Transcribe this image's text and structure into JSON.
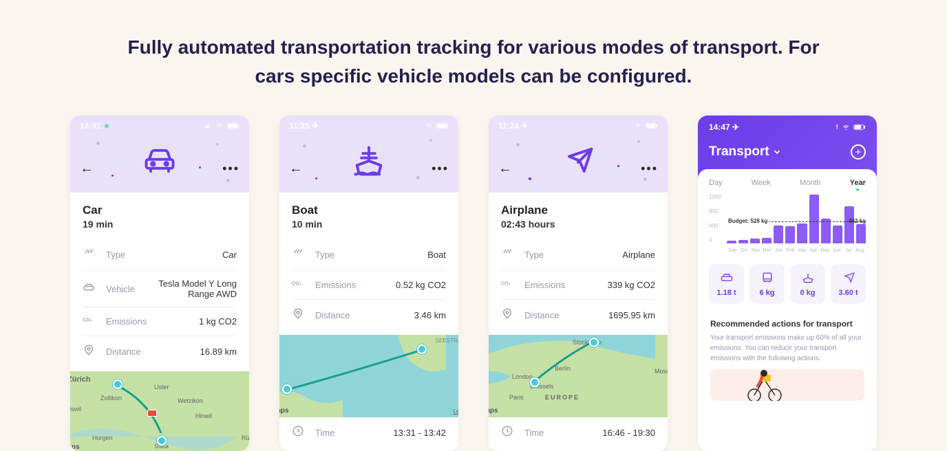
{
  "headline": "Fully automated transportation tracking for various modes of transport. For cars specific vehicle models can be configured.",
  "colors": {
    "page_bg": "#faf6ef",
    "accent": "#6b3ce9",
    "accent_light": "#8b5cf6",
    "head_bg": "#e9e1fa",
    "text_dark": "#25204f",
    "muted": "#9a97ac",
    "teal": "#4ec9d4"
  },
  "trips": [
    {
      "id": "car",
      "status_time": "14:41",
      "title": "Car",
      "duration": "19 min",
      "rows": {
        "type": "Car",
        "vehicle": "Tesla Model Y Long Range AWD",
        "emissions": "1 kg CO2",
        "distance": "16.89 km"
      },
      "show_vehicle": true,
      "map_style": "land",
      "map_places": [
        "Zürich",
        "Uster",
        "Zollikon",
        "Wetzikon",
        "Hinwil",
        "Adliswil",
        "Horgen",
        "Stäfa",
        "Rüti (Z"
      ],
      "time": null
    },
    {
      "id": "boat",
      "status_time": "11:25",
      "title": "Boat",
      "duration": "10 min",
      "rows": {
        "type": "Boat",
        "emissions": "0.52 kg CO2",
        "distance": "3.46 km"
      },
      "show_vehicle": false,
      "map_style": "sea",
      "map_places": [],
      "time": "13:31 - 13:42"
    },
    {
      "id": "airplane",
      "status_time": "11:24",
      "title": "Airplane",
      "duration": "02:43 hours",
      "rows": {
        "type": "Airplane",
        "emissions": "339 kg CO2",
        "distance": "1695.95 km"
      },
      "show_vehicle": false,
      "map_style": "land",
      "map_places": [
        "Stockholm",
        "Moscow",
        "Berlin",
        "London",
        "Brussels",
        "Paris",
        "EUROPE"
      ],
      "time": "16:46 - 19:30"
    }
  ],
  "labels": {
    "type": "Type",
    "vehicle": "Vehicle",
    "emissions": "Emissions",
    "distance": "Distance",
    "time": "Time",
    "maps": "Maps",
    "legal": "Legal"
  },
  "dashboard": {
    "status_time": "14:47",
    "title": "Transport",
    "tabs": [
      "Day",
      "Week",
      "Month",
      "Year"
    ],
    "active_tab": "Year",
    "chart": {
      "type": "bar",
      "ylim": [
        0,
        1200
      ],
      "yticks": [
        0,
        400,
        800,
        1200
      ],
      "bar_color": "#8b5cf6",
      "budget_label": "Budget: 528 kg",
      "budget_value": 528,
      "last_value_label": "462 kg",
      "categories": [
        "Sep",
        "Oct",
        "Nov",
        "Dec",
        "Jan",
        "Feb",
        "Mar",
        "Apr",
        "May",
        "Jun",
        "Jul",
        "Aug"
      ],
      "values": [
        60,
        80,
        120,
        140,
        440,
        420,
        480,
        1180,
        600,
        430,
        900,
        462
      ]
    },
    "modes": [
      {
        "icon": "car",
        "value": "1.18 t"
      },
      {
        "icon": "bus",
        "value": "6 kg"
      },
      {
        "icon": "boat",
        "value": "0 kg"
      },
      {
        "icon": "plane",
        "value": "3.60 t"
      }
    ],
    "rec_title": "Recommended actions for transport",
    "rec_text": "Your transport emissions make up 60% of all your emissions. You can reduce your transport emissions with the following actions:"
  }
}
